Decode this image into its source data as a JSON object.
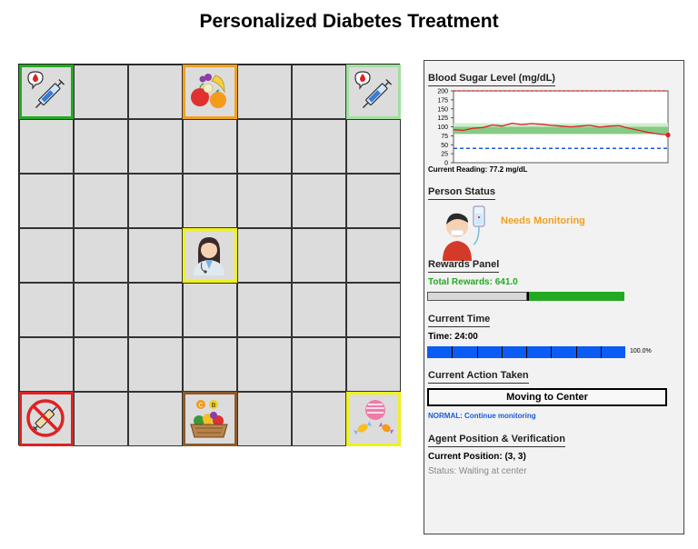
{
  "title": "Personalized Diabetes Treatment",
  "grid": {
    "cols": 7,
    "rows": 7,
    "special_cells": [
      {
        "row": 0,
        "col": 0,
        "icon": "insulin-syringe-icon",
        "border": "#22aa22"
      },
      {
        "row": 0,
        "col": 3,
        "icon": "fruit-basket-icon",
        "border": "#f0a020"
      },
      {
        "row": 0,
        "col": 6,
        "icon": "insulin-syringe-icon",
        "border": "#a0e0a0"
      },
      {
        "row": 3,
        "col": 3,
        "icon": "doctor-icon",
        "border": "#f0f020"
      },
      {
        "row": 6,
        "col": 0,
        "icon": "no-syringe-icon",
        "border": "#dd2222"
      },
      {
        "row": 6,
        "col": 3,
        "icon": "vegetable-basket-icon",
        "border": "#8b5a2b"
      },
      {
        "row": 6,
        "col": 6,
        "icon": "candy-icon",
        "border": "#f0f020"
      }
    ]
  },
  "panel": {
    "blood_sugar": {
      "heading": "Blood Sugar Level (mg/dL)",
      "reading_label": "Current Reading: 77.2 mg/dL"
    },
    "person": {
      "heading": "Person Status",
      "status": "Needs Monitoring",
      "status_color": "#f0a020"
    },
    "rewards": {
      "heading": "Rewards Panel",
      "total_label": "Total Rewards: 641.0",
      "color": "#22aa22",
      "fraction": 0.5
    },
    "time": {
      "heading": "Current Time",
      "label": "Time: 24:00",
      "percent_label": "100.0%",
      "fraction": 1.0,
      "color": "#0a5cf5"
    },
    "action": {
      "heading": "Current Action Taken",
      "value": "Moving to Center",
      "mode": "NORMAL: Continue monitoring",
      "mode_color": "#1a5ad8"
    },
    "agent": {
      "heading": "Agent Position & Verification",
      "position": "Current Position: (3, 3)",
      "status": "Status: Waiting at center"
    }
  },
  "chart_data": {
    "type": "line",
    "title": "Blood Sugar Level (mg/dL)",
    "yticks": [
      "200",
      "175",
      "150",
      "125",
      "100",
      "75",
      "50",
      "25",
      "0"
    ],
    "ylim": [
      0,
      200
    ],
    "x": [
      0,
      1,
      2,
      3,
      4,
      5,
      6,
      7,
      8,
      9,
      10,
      11,
      12,
      13,
      14,
      15,
      16,
      17,
      18,
      19,
      20,
      21,
      22
    ],
    "values": [
      92,
      90,
      96,
      98,
      105,
      102,
      110,
      106,
      109,
      107,
      104,
      102,
      100,
      102,
      104,
      99,
      102,
      103,
      96,
      90,
      84,
      80,
      77.2
    ],
    "upper_threshold": 200,
    "lower_threshold": 40,
    "target_band": [
      80,
      110
    ],
    "inner_band": [
      80,
      100
    ]
  }
}
